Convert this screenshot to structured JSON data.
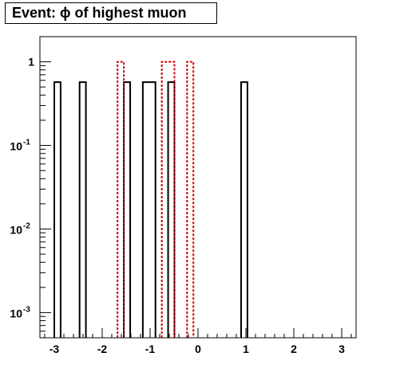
{
  "chart_data": {
    "type": "bar",
    "title": "Event: ϕ of highest muon",
    "xlabel": "",
    "ylabel": "",
    "xlim": [
      -3.3,
      3.3
    ],
    "ylim": [
      0.0005,
      2.0
    ],
    "y_scale": "log",
    "grid": false,
    "x_ticks": [
      {
        "value": -3,
        "label": "-3"
      },
      {
        "value": -2,
        "label": "-2"
      },
      {
        "value": -1,
        "label": "-1"
      },
      {
        "value": 0,
        "label": "0"
      },
      {
        "value": 1,
        "label": "1"
      },
      {
        "value": 2,
        "label": "2"
      },
      {
        "value": 3,
        "label": "3"
      }
    ],
    "y_ticks": [
      {
        "value": 1,
        "base": "1",
        "exp": ""
      },
      {
        "value": 0.1,
        "base": "10",
        "exp": "-1"
      },
      {
        "value": 0.01,
        "base": "10",
        "exp": "-2"
      },
      {
        "value": 0.001,
        "base": "10",
        "exp": "-3"
      }
    ],
    "series": [
      {
        "style": "solid",
        "color": "#000000",
        "bins": [
          {
            "x0": -3.0,
            "x1": -2.868,
            "y": 0.571
          },
          {
            "x0": -2.472,
            "x1": -2.34,
            "y": 0.571
          },
          {
            "x0": -1.548,
            "x1": -1.416,
            "y": 0.571
          },
          {
            "x0": -1.152,
            "x1": -0.888,
            "y": 0.571
          },
          {
            "x0": -0.624,
            "x1": -0.492,
            "y": 0.571
          },
          {
            "x0": 0.9,
            "x1": 1.032,
            "y": 0.571
          }
        ]
      },
      {
        "style": "dotted",
        "color": "#cc0000",
        "bins": [
          {
            "x0": -1.68,
            "x1": -1.548,
            "y": 1.0
          },
          {
            "x0": -0.756,
            "x1": -0.492,
            "y": 1.0
          },
          {
            "x0": -0.228,
            "x1": -0.096,
            "y": 1.0
          }
        ]
      }
    ]
  }
}
